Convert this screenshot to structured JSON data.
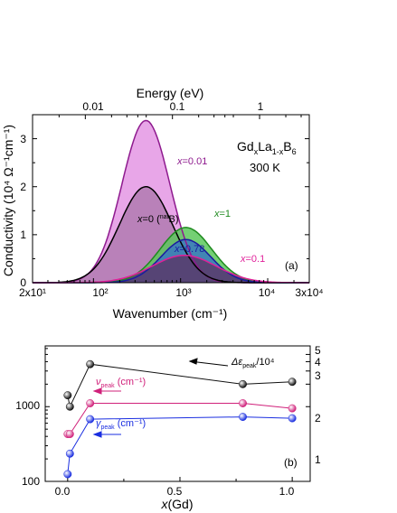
{
  "chart_data": [
    {
      "type": "area",
      "panel": "(a)",
      "x_scale": "log",
      "xlim": [
        20,
        30000
      ],
      "ylim": [
        0,
        3.5
      ],
      "xlabel": "Wavenumber (cm⁻¹)",
      "ylabel": "Conductivity (10⁴ Ω⁻¹cm⁻¹)",
      "top_axis_label": "Energy (eV)",
      "bottom_tick_labels": [
        "2x10¹",
        "10²",
        "10³",
        "10⁴",
        "3x10⁴"
      ],
      "top_tick_labels": [
        "0.01",
        "0.1",
        "1"
      ],
      "y_tick_labels": [
        "0",
        "1",
        "2",
        "3"
      ],
      "title_formula": {
        "base1": "Gd",
        "sub1": "x",
        "base2": "La",
        "sub2": "1-x",
        "base3": "B",
        "sub3": "6"
      },
      "temperature": "300 K",
      "series": [
        {
          "label": "x=0.01",
          "color": "#8e1a8e",
          "fill": "#e8a6e8",
          "peak_x": 400,
          "peak_y": 3.38,
          "width": 0.39,
          "pow": 1.4
        },
        {
          "label": "x=0 (natB)",
          "color": "#000000",
          "fill": "#b07ab0",
          "peak_x": 400,
          "peak_y": 2.0,
          "width": 0.43,
          "pow": 1.4
        },
        {
          "label": "x=1",
          "color": "#1f8a1f",
          "fill": "#5cc85c",
          "peak_x": 1150,
          "peak_y": 1.15,
          "width": 0.42,
          "pow": 1.6
        },
        {
          "label": "x=0.78",
          "color": "#1a1aa0",
          "fill": "#3a78c0",
          "peak_x": 1150,
          "peak_y": 0.9,
          "width": 0.4,
          "pow": 1.6
        },
        {
          "label": "x=0.1",
          "color": "#e0209a",
          "fill": "#5a3a6a",
          "peak_x": 1100,
          "peak_y": 0.57,
          "width": 0.52,
          "pow": 1.6
        }
      ],
      "labels": {
        "x001": {
          "pre": "x",
          "post": "=0.01"
        },
        "x0": {
          "pre": "x",
          "post": "=0 (",
          "sup": "nat",
          "tail": "B)"
        },
        "x1": {
          "pre": "x",
          "post": "=1"
        },
        "x078": {
          "pre": "x",
          "post": "=0.78"
        },
        "x01": {
          "pre": "x",
          "post": "=0.1"
        }
      }
    },
    {
      "type": "scatter",
      "panel": "(b)",
      "y_scale": "log",
      "xlim": [
        -0.1,
        1.08
      ],
      "ylim": [
        100,
        6500
      ],
      "xlabel_pre": "x",
      "xlabel_post": "(Gd)",
      "x_tick_labels": [
        "0.0",
        "0.5",
        "1.0"
      ],
      "y_tick_labels": [
        "100",
        "1000"
      ],
      "right_tick_labels": [
        "1",
        "2",
        "3",
        "4",
        "5"
      ],
      "x": [
        0,
        0.01,
        0.1,
        0.78,
        1.0
      ],
      "series": [
        {
          "name": "Δεpeak/10⁴",
          "color": "#111111",
          "values": [
            1420,
            1000,
            3700,
            2000,
            2150
          ]
        },
        {
          "name": "νpeak (cm⁻¹)",
          "color": "#d0207a",
          "values": [
            430,
            430,
            1110,
            1110,
            950
          ]
        },
        {
          "name": "γpeak (cm⁻¹)",
          "color": "#1a2ee0",
          "values": [
            125,
            235,
            680,
            730,
            700
          ]
        }
      ],
      "legend": {
        "delta": {
          "sym": "Δε",
          "sub": "peak",
          "tail": "/10⁴"
        },
        "nu": {
          "sym": "ν",
          "sub": "peak",
          "tail": " (cm⁻¹)"
        },
        "gamma": {
          "sym": "γ",
          "sub": "peak",
          "tail": " (cm⁻¹)"
        }
      }
    }
  ]
}
